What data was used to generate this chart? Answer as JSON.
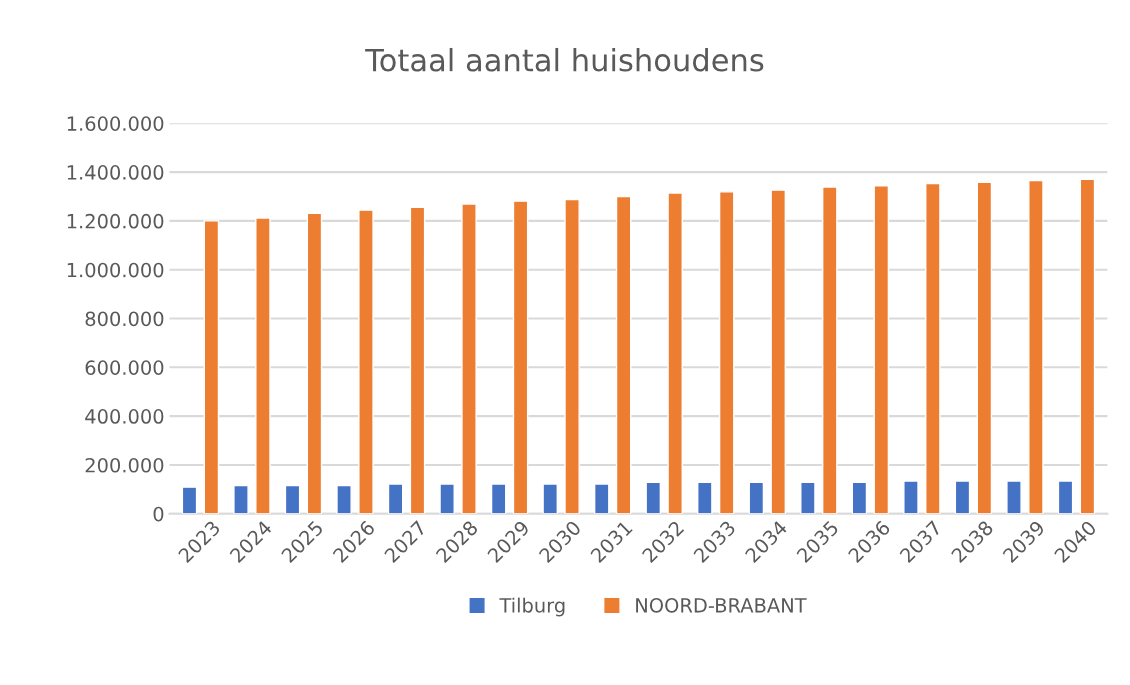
{
  "chart_data": {
    "type": "bar",
    "title": "Totaal aantal huishoudens",
    "categories": [
      "2023",
      "2024",
      "2025",
      "2026",
      "2027",
      "2028",
      "2029",
      "2030",
      "2031",
      "2032",
      "2033",
      "2034",
      "2035",
      "2036",
      "2037",
      "2038",
      "2039",
      "2040"
    ],
    "series": [
      {
        "name": "Tilburg",
        "color": "#4472c4",
        "values": [
          109000,
          116000,
          116000,
          116000,
          122000,
          122000,
          122000,
          122000,
          122000,
          129000,
          129000,
          129000,
          129000,
          129000,
          134000,
          134000,
          134000,
          134000
        ]
      },
      {
        "name": "NOORD-BRABANT",
        "color": "#ed7d31",
        "values": [
          1200000,
          1212000,
          1231000,
          1244000,
          1256000,
          1269000,
          1281000,
          1288000,
          1300000,
          1314000,
          1319000,
          1326000,
          1339000,
          1344000,
          1353000,
          1358000,
          1365000,
          1371000
        ]
      }
    ],
    "ylim": [
      0,
      1600000
    ],
    "yticks": [
      0,
      {
        "value": 200000,
        "label": "200.000"
      },
      {
        "value": 400000,
        "label": "400.000"
      },
      {
        "value": 600000,
        "label": "600.000"
      },
      {
        "value": 800000,
        "label": "800.000"
      },
      {
        "value": 1000000,
        "label": "1.000.000"
      },
      {
        "value": 1200000,
        "label": "1.200.000"
      },
      {
        "value": 1400000,
        "label": "1.400.000"
      },
      {
        "value": 1600000,
        "label": "1.600.000"
      }
    ],
    "grid": "y",
    "legend": "bottom"
  }
}
